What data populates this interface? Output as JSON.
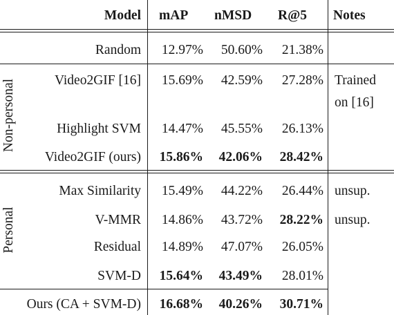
{
  "header": {
    "model": "Model",
    "map": "mAP",
    "nmsd": "nMSD",
    "r5": "R@5",
    "notes": "Notes"
  },
  "groups": {
    "non_personal": "Non-personal",
    "personal": "Personal"
  },
  "rows": {
    "random": {
      "model": "Random",
      "map": "12.97%",
      "nmsd": "50.60%",
      "r5": "21.38%",
      "notes": ""
    },
    "video2gif16": {
      "model": "Video2GIF [16]",
      "map": "15.69%",
      "nmsd": "42.59%",
      "r5": "27.28%",
      "notes_line1": "Trained",
      "notes_line2": "on [16]"
    },
    "highlight_svm": {
      "model": "Highlight SVM",
      "map": "14.47%",
      "nmsd": "45.55%",
      "r5": "26.13%",
      "notes": ""
    },
    "video2gif_ours": {
      "model": "Video2GIF (ours)",
      "map": "15.86%",
      "nmsd": "42.06%",
      "r5": "28.42%",
      "notes": ""
    },
    "max_similarity": {
      "model": "Max Similarity",
      "map": "15.49%",
      "nmsd": "44.22%",
      "r5": "26.44%",
      "notes": "unsup."
    },
    "vmmr": {
      "model": "V-MMR",
      "map": "14.86%",
      "nmsd": "43.72%",
      "r5": "28.22%",
      "notes": "unsup."
    },
    "residual": {
      "model": "Residual",
      "map": "14.89%",
      "nmsd": "47.07%",
      "r5": "26.05%",
      "notes": ""
    },
    "svmd": {
      "model": "SVM-D",
      "map": "15.64%",
      "nmsd": "43.49%",
      "r5": "28.01%",
      "notes": ""
    },
    "ours": {
      "model": "Ours (CA + SVM-D)",
      "map": "16.68%",
      "nmsd": "40.26%",
      "r5": "30.71%",
      "notes": ""
    }
  }
}
